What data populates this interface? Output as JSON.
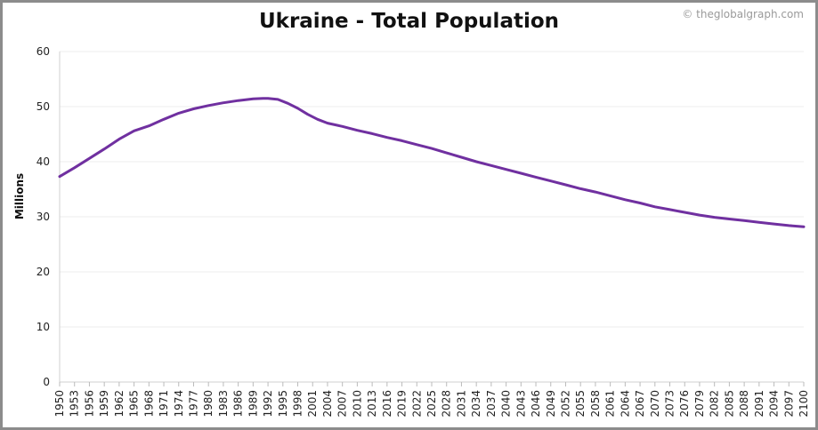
{
  "watermark": "© theglobalgraph.com",
  "chart_data": {
    "type": "line",
    "title": "Ukraine - Total Population",
    "xlabel": "",
    "ylabel": "Millions",
    "xlim": [
      1950,
      2100
    ],
    "ylim": [
      0,
      60
    ],
    "yticks": [
      0,
      10,
      20,
      30,
      40,
      50,
      60
    ],
    "xticks": [
      1950,
      1953,
      1956,
      1959,
      1962,
      1965,
      1968,
      1971,
      1974,
      1977,
      1980,
      1983,
      1986,
      1989,
      1992,
      1995,
      1998,
      2001,
      2004,
      2007,
      2010,
      2013,
      2016,
      2019,
      2022,
      2025,
      2028,
      2031,
      2034,
      2037,
      2040,
      2043,
      2046,
      2049,
      2052,
      2055,
      2058,
      2061,
      2064,
      2067,
      2070,
      2073,
      2076,
      2079,
      2082,
      2085,
      2088,
      2091,
      2094,
      2097,
      2100
    ],
    "grid": true,
    "legend": "none",
    "line_color": "#7030a0",
    "series": [
      {
        "x": [
          1950,
          1953,
          1956,
          1959,
          1962,
          1965,
          1968,
          1971,
          1974,
          1977,
          1980,
          1983,
          1986,
          1989,
          1991,
          1992,
          1994,
          1996,
          1998,
          2000,
          2002,
          2004,
          2007,
          2010,
          2013,
          2016,
          2019,
          2022,
          2025,
          2028,
          2031,
          2034,
          2037,
          2040,
          2043,
          2046,
          2049,
          2052,
          2055,
          2058,
          2061,
          2064,
          2067,
          2070,
          2073,
          2076,
          2079,
          2082,
          2085,
          2088,
          2091,
          2094,
          2097,
          2100
        ],
        "y": [
          37.3,
          38.9,
          40.6,
          42.3,
          44.1,
          45.6,
          46.5,
          47.7,
          48.8,
          49.6,
          50.2,
          50.7,
          51.1,
          51.4,
          51.5,
          51.5,
          51.3,
          50.6,
          49.7,
          48.6,
          47.7,
          47.0,
          46.4,
          45.7,
          45.1,
          44.4,
          43.8,
          43.1,
          42.4,
          41.6,
          40.8,
          40.0,
          39.3,
          38.6,
          37.9,
          37.2,
          36.5,
          35.8,
          35.1,
          34.5,
          33.8,
          33.1,
          32.5,
          31.8,
          31.3,
          30.8,
          30.3,
          29.9,
          29.6,
          29.3,
          29.0,
          28.7,
          28.4,
          28.2
        ]
      }
    ]
  }
}
